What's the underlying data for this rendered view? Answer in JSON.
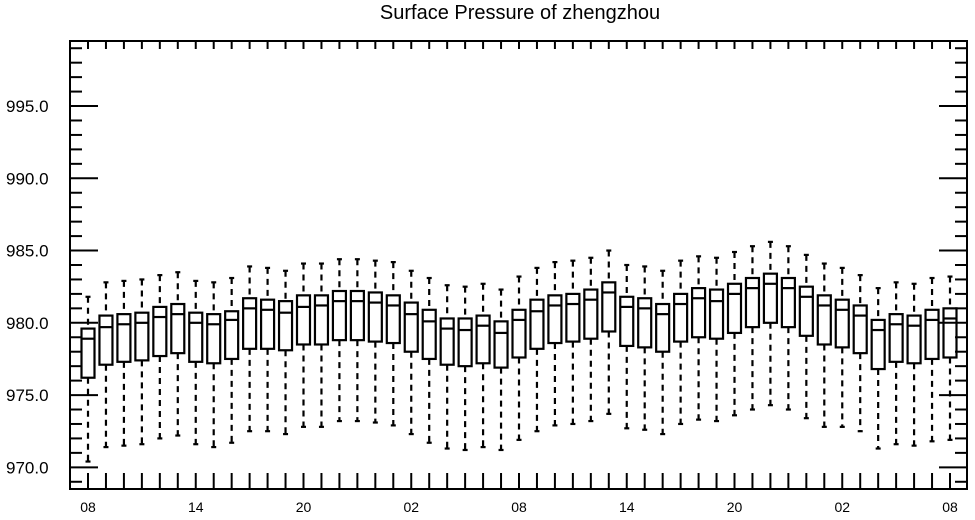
{
  "chart_data": {
    "type": "box",
    "title": "Surface Pressure of zhengzhou",
    "xlabel": "",
    "ylabel": "",
    "ylim": [
      968.5,
      999.5
    ],
    "yticks": [
      970,
      975,
      980,
      985,
      990,
      995
    ],
    "ytick_labels": [
      "970.0",
      "975.0",
      "980.0",
      "985.0",
      "990.0",
      "995.0"
    ],
    "xtick_labels": [
      "08",
      "14",
      "20",
      "02",
      "08",
      "14",
      "20",
      "02",
      "08"
    ],
    "xtick_every": 6,
    "grid": false,
    "series": [
      {
        "boxes": [
          {
            "x": 0,
            "min": 970.4,
            "q1": 976.2,
            "median": 978.9,
            "q3": 979.6,
            "max": 981.8
          },
          {
            "x": 1,
            "min": 971.4,
            "q1": 977.1,
            "median": 979.7,
            "q3": 980.5,
            "max": 982.8
          },
          {
            "x": 2,
            "min": 971.5,
            "q1": 977.3,
            "median": 979.9,
            "q3": 980.6,
            "max": 982.9
          },
          {
            "x": 3,
            "min": 971.6,
            "q1": 977.4,
            "median": 980.0,
            "q3": 980.7,
            "max": 983.0
          },
          {
            "x": 4,
            "min": 972.0,
            "q1": 977.7,
            "median": 980.4,
            "q3": 981.1,
            "max": 983.3
          },
          {
            "x": 5,
            "min": 972.2,
            "q1": 977.9,
            "median": 980.6,
            "q3": 981.3,
            "max": 983.5
          },
          {
            "x": 6,
            "min": 971.6,
            "q1": 977.3,
            "median": 980.0,
            "q3": 980.7,
            "max": 982.9
          },
          {
            "x": 7,
            "min": 971.4,
            "q1": 977.2,
            "median": 979.9,
            "q3": 980.6,
            "max": 982.8
          },
          {
            "x": 8,
            "min": 971.7,
            "q1": 977.5,
            "median": 980.2,
            "q3": 980.8,
            "max": 983.1
          },
          {
            "x": 9,
            "min": 972.5,
            "q1": 978.2,
            "median": 981.0,
            "q3": 981.7,
            "max": 983.9
          },
          {
            "x": 10,
            "min": 972.5,
            "q1": 978.2,
            "median": 980.9,
            "q3": 981.6,
            "max": 983.8
          },
          {
            "x": 11,
            "min": 972.3,
            "q1": 978.1,
            "median": 980.7,
            "q3": 981.5,
            "max": 983.6
          },
          {
            "x": 12,
            "min": 972.8,
            "q1": 978.5,
            "median": 981.1,
            "q3": 981.9,
            "max": 984.1
          },
          {
            "x": 13,
            "min": 972.8,
            "q1": 978.5,
            "median": 981.2,
            "q3": 981.9,
            "max": 984.1
          },
          {
            "x": 14,
            "min": 973.2,
            "q1": 978.8,
            "median": 981.5,
            "q3": 982.2,
            "max": 984.4
          },
          {
            "x": 15,
            "min": 973.2,
            "q1": 978.8,
            "median": 981.5,
            "q3": 982.2,
            "max": 984.4
          },
          {
            "x": 16,
            "min": 973.1,
            "q1": 978.7,
            "median": 981.4,
            "q3": 982.1,
            "max": 984.3
          },
          {
            "x": 17,
            "min": 972.9,
            "q1": 978.6,
            "median": 981.2,
            "q3": 981.9,
            "max": 984.2
          },
          {
            "x": 18,
            "min": 972.3,
            "q1": 978.0,
            "median": 980.6,
            "q3": 981.4,
            "max": 983.6
          },
          {
            "x": 19,
            "min": 971.7,
            "q1": 977.5,
            "median": 980.1,
            "q3": 980.9,
            "max": 983.1
          },
          {
            "x": 20,
            "min": 971.3,
            "q1": 977.1,
            "median": 979.6,
            "q3": 980.3,
            "max": 982.6
          },
          {
            "x": 21,
            "min": 971.2,
            "q1": 977.0,
            "median": 979.5,
            "q3": 980.3,
            "max": 982.5
          },
          {
            "x": 22,
            "min": 971.4,
            "q1": 977.2,
            "median": 979.8,
            "q3": 980.5,
            "max": 982.7
          },
          {
            "x": 23,
            "min": 971.2,
            "q1": 976.9,
            "median": 979.3,
            "q3": 980.1,
            "max": 982.3
          },
          {
            "x": 24,
            "min": 971.9,
            "q1": 977.6,
            "median": 980.2,
            "q3": 980.9,
            "max": 983.2
          },
          {
            "x": 25,
            "min": 972.5,
            "q1": 978.2,
            "median": 980.8,
            "q3": 981.6,
            "max": 983.8
          },
          {
            "x": 26,
            "min": 972.9,
            "q1": 978.6,
            "median": 981.2,
            "q3": 981.9,
            "max": 984.2
          },
          {
            "x": 27,
            "min": 973.0,
            "q1": 978.7,
            "median": 981.3,
            "q3": 982.0,
            "max": 984.3
          },
          {
            "x": 28,
            "min": 973.2,
            "q1": 978.9,
            "median": 981.6,
            "q3": 982.3,
            "max": 984.5
          },
          {
            "x": 29,
            "min": 973.7,
            "q1": 979.4,
            "median": 982.1,
            "q3": 982.8,
            "max": 985.0
          },
          {
            "x": 30,
            "min": 972.7,
            "q1": 978.4,
            "median": 981.1,
            "q3": 981.8,
            "max": 984.0
          },
          {
            "x": 31,
            "min": 972.6,
            "q1": 978.3,
            "median": 981.0,
            "q3": 981.7,
            "max": 983.9
          },
          {
            "x": 32,
            "min": 972.3,
            "q1": 978.0,
            "median": 980.6,
            "q3": 981.3,
            "max": 983.6
          },
          {
            "x": 33,
            "min": 973.0,
            "q1": 978.7,
            "median": 981.3,
            "q3": 982.0,
            "max": 984.3
          },
          {
            "x": 34,
            "min": 973.3,
            "q1": 979.0,
            "median": 981.7,
            "q3": 982.4,
            "max": 984.6
          },
          {
            "x": 35,
            "min": 973.2,
            "q1": 978.9,
            "median": 981.5,
            "q3": 982.3,
            "max": 984.5
          },
          {
            "x": 36,
            "min": 973.6,
            "q1": 979.3,
            "median": 982.0,
            "q3": 982.7,
            "max": 984.9
          },
          {
            "x": 37,
            "min": 974.0,
            "q1": 979.7,
            "median": 982.4,
            "q3": 983.1,
            "max": 985.3
          },
          {
            "x": 38,
            "min": 974.3,
            "q1": 980.0,
            "median": 982.7,
            "q3": 983.4,
            "max": 985.6
          },
          {
            "x": 39,
            "min": 974.0,
            "q1": 979.7,
            "median": 982.4,
            "q3": 983.1,
            "max": 985.3
          },
          {
            "x": 40,
            "min": 973.4,
            "q1": 979.1,
            "median": 981.8,
            "q3": 982.5,
            "max": 984.7
          },
          {
            "x": 41,
            "min": 972.8,
            "q1": 978.5,
            "median": 981.2,
            "q3": 981.9,
            "max": 984.1
          },
          {
            "x": 42,
            "min": 972.8,
            "q1": 978.3,
            "median": 980.9,
            "q3": 981.6,
            "max": 983.8
          },
          {
            "x": 43,
            "min": 972.5,
            "q1": 977.9,
            "median": 980.5,
            "q3": 981.2,
            "max": 983.3
          },
          {
            "x": 44,
            "min": 971.3,
            "q1": 976.8,
            "median": 979.5,
            "q3": 980.2,
            "max": 982.4
          },
          {
            "x": 45,
            "min": 971.6,
            "q1": 977.3,
            "median": 979.9,
            "q3": 980.6,
            "max": 982.8
          },
          {
            "x": 46,
            "min": 971.5,
            "q1": 977.2,
            "median": 979.8,
            "q3": 980.5,
            "max": 982.7
          },
          {
            "x": 47,
            "min": 971.8,
            "q1": 977.5,
            "median": 980.2,
            "q3": 980.9,
            "max": 983.1
          },
          {
            "x": 48,
            "min": 971.9,
            "q1": 977.6,
            "median": 980.3,
            "q3": 981.0,
            "max": 983.2
          }
        ]
      }
    ]
  }
}
